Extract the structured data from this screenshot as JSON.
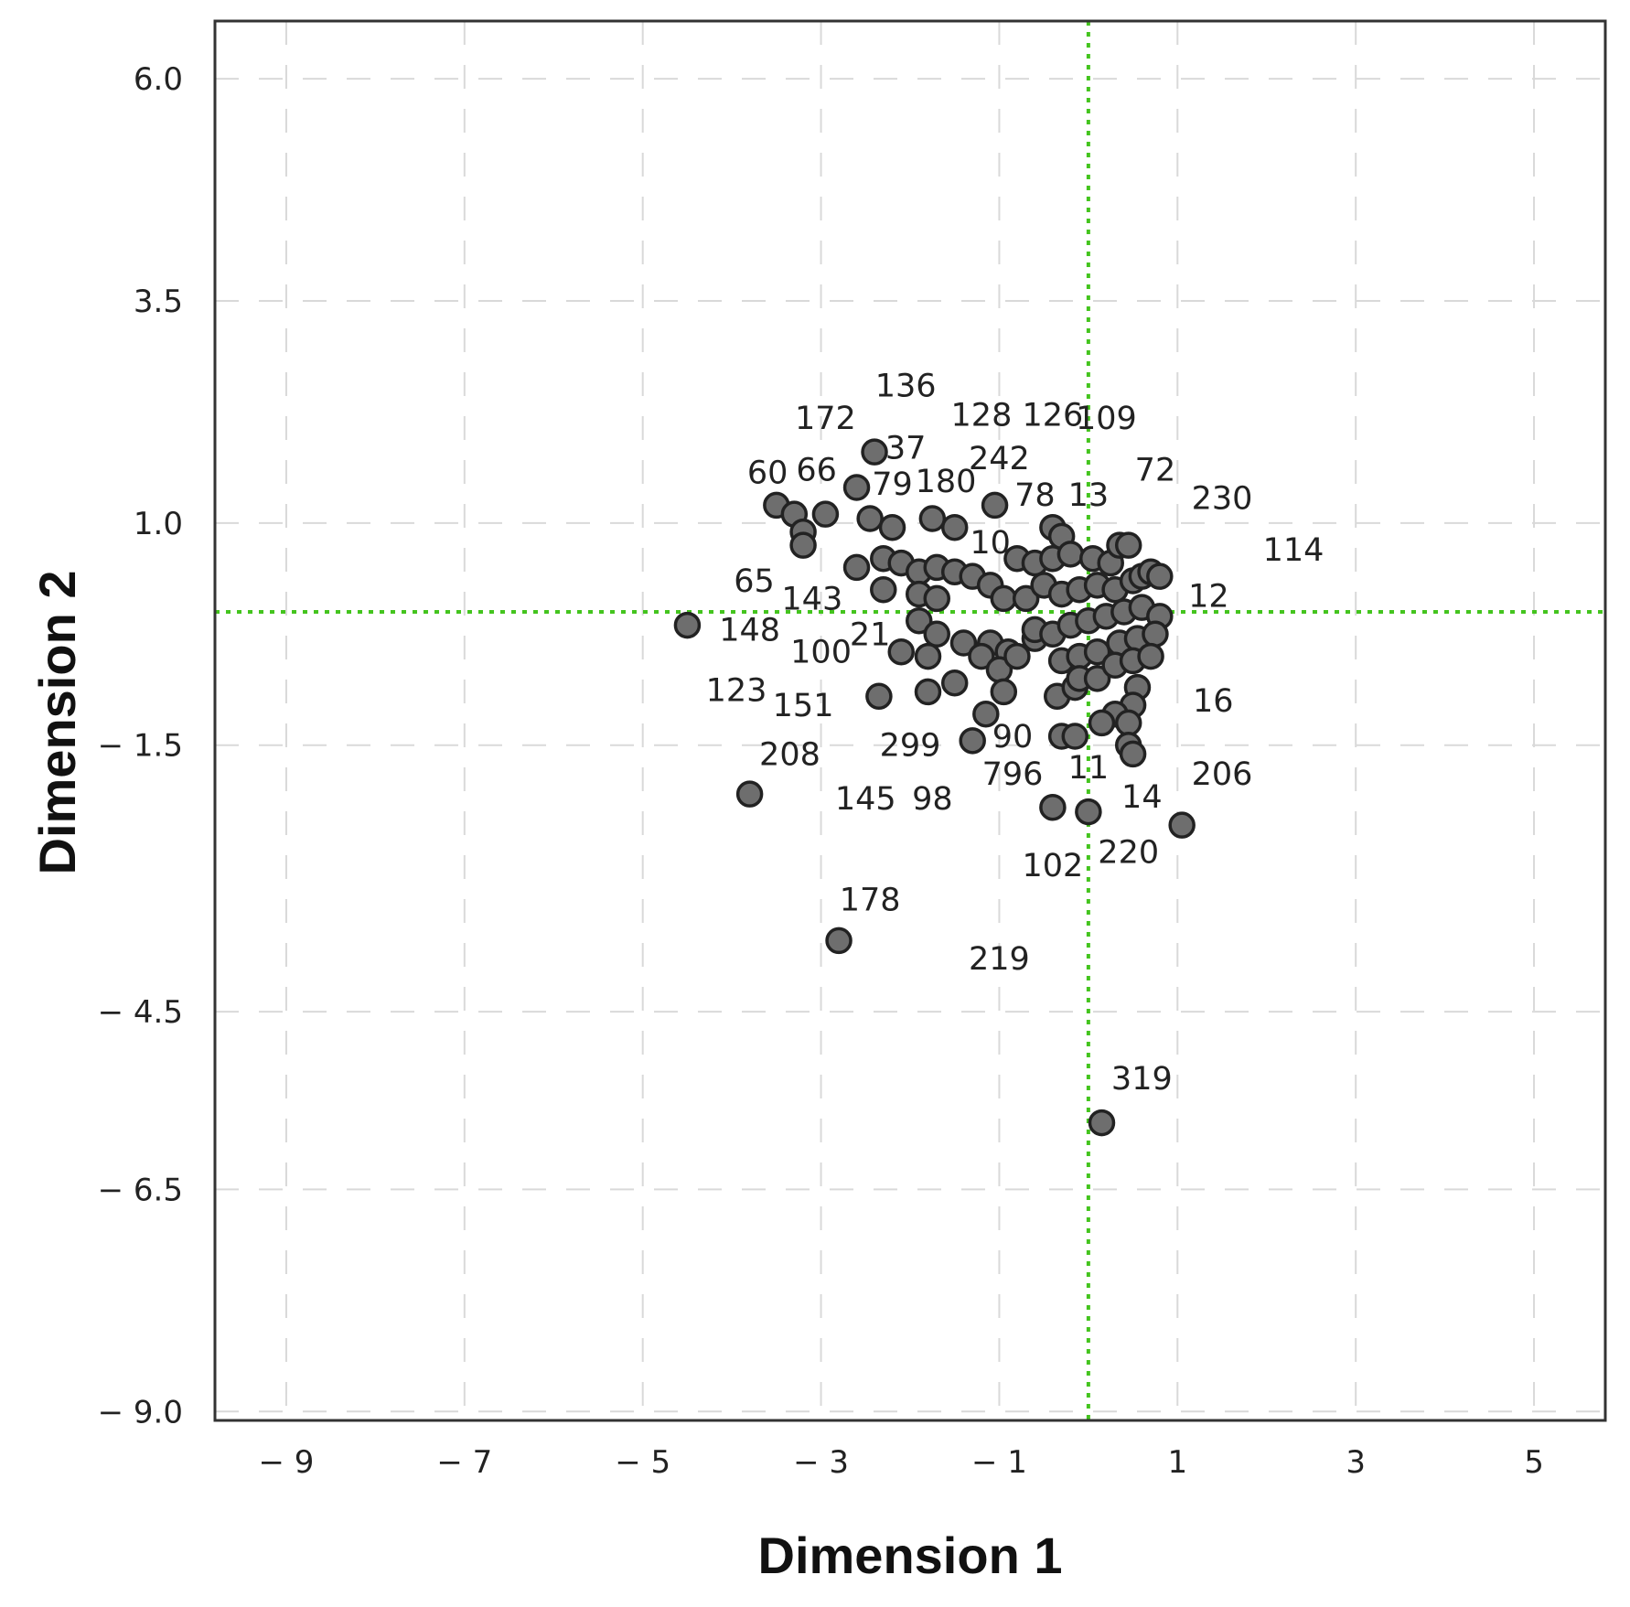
{
  "chart_data": {
    "type": "scatter",
    "xlabel": "Dimension 1",
    "ylabel": "Dimension 2",
    "xlim": [
      -9.8,
      5.8
    ],
    "ylim": [
      -9.1,
      6.65
    ],
    "x_ticks": [
      {
        "value": -9,
        "label": "− 9"
      },
      {
        "value": -7,
        "label": "− 7"
      },
      {
        "value": -5,
        "label": "− 5"
      },
      {
        "value": -3,
        "label": "− 3"
      },
      {
        "value": -1,
        "label": "− 1"
      },
      {
        "value": 1,
        "label": "1"
      },
      {
        "value": 3,
        "label": "3"
      },
      {
        "value": 5,
        "label": "5"
      }
    ],
    "y_ticks": [
      {
        "value": 6.0,
        "label": "6.0"
      },
      {
        "value": 3.5,
        "label": "3.5"
      },
      {
        "value": 1.0,
        "label": "1.0"
      },
      {
        "value": -1.5,
        "label": "− 1.5"
      },
      {
        "value": -4.5,
        "label": "− 4.5"
      },
      {
        "value": -6.5,
        "label": "− 6.5"
      },
      {
        "value": -9.0,
        "label": "− 9.0"
      }
    ],
    "grid": true,
    "reference_lines": {
      "x": 0,
      "y": 0
    },
    "point_color": "#6e6e6e",
    "reference_color": "#44c41e",
    "points": [
      [
        -4.5,
        -0.15
      ],
      [
        -3.8,
        -2.05
      ],
      [
        -2.8,
        -3.7
      ],
      [
        0.15,
        -5.75
      ],
      [
        1.05,
        -2.4
      ],
      [
        -0.4,
        -2.2
      ],
      [
        0.0,
        -2.25
      ],
      [
        -2.4,
        1.8
      ],
      [
        -2.6,
        1.4
      ],
      [
        -3.5,
        1.2
      ],
      [
        -3.3,
        1.1
      ],
      [
        -3.2,
        0.9
      ],
      [
        -3.2,
        0.75
      ],
      [
        -2.95,
        1.1
      ],
      [
        -2.45,
        1.05
      ],
      [
        -2.2,
        0.95
      ],
      [
        -1.75,
        1.05
      ],
      [
        -1.5,
        0.95
      ],
      [
        -1.05,
        1.2
      ],
      [
        -0.4,
        0.95
      ],
      [
        -0.3,
        0.85
      ],
      [
        -2.6,
        0.5
      ],
      [
        -2.3,
        0.6
      ],
      [
        -2.1,
        0.55
      ],
      [
        -1.9,
        0.45
      ],
      [
        -1.7,
        0.5
      ],
      [
        -1.5,
        0.45
      ],
      [
        -1.3,
        0.4
      ],
      [
        -1.1,
        0.3
      ],
      [
        -2.3,
        0.25
      ],
      [
        -1.9,
        0.2
      ],
      [
        -1.7,
        0.15
      ],
      [
        -0.95,
        0.15
      ],
      [
        -1.9,
        -0.1
      ],
      [
        -1.7,
        -0.25
      ],
      [
        -1.4,
        -0.35
      ],
      [
        -1.1,
        -0.35
      ],
      [
        -0.9,
        -0.45
      ],
      [
        -0.6,
        -0.3
      ],
      [
        -2.1,
        -0.45
      ],
      [
        -1.8,
        -0.5
      ],
      [
        -1.2,
        -0.5
      ],
      [
        -1.0,
        -0.65
      ],
      [
        -0.8,
        -0.5
      ],
      [
        -2.35,
        -0.95
      ],
      [
        -1.8,
        -0.9
      ],
      [
        -1.5,
        -0.8
      ],
      [
        -0.95,
        -0.9
      ],
      [
        -0.35,
        -0.95
      ],
      [
        -0.15,
        -0.85
      ],
      [
        -1.3,
        -1.45
      ],
      [
        -1.15,
        -1.15
      ],
      [
        -0.3,
        -1.4
      ],
      [
        -0.15,
        -1.4
      ],
      [
        -0.8,
        0.6
      ],
      [
        -0.6,
        0.55
      ],
      [
        -0.4,
        0.6
      ],
      [
        -0.2,
        0.65
      ],
      [
        0.05,
        0.6
      ],
      [
        0.25,
        0.55
      ],
      [
        0.35,
        0.75
      ],
      [
        0.45,
        0.75
      ],
      [
        -0.7,
        0.15
      ],
      [
        -0.5,
        0.3
      ],
      [
        -0.3,
        0.2
      ],
      [
        -0.1,
        0.25
      ],
      [
        0.1,
        0.3
      ],
      [
        0.3,
        0.25
      ],
      [
        0.5,
        0.35
      ],
      [
        0.6,
        0.4
      ],
      [
        0.7,
        0.45
      ],
      [
        0.8,
        0.4
      ],
      [
        -0.6,
        -0.2
      ],
      [
        -0.4,
        -0.25
      ],
      [
        -0.2,
        -0.15
      ],
      [
        0.0,
        -0.1
      ],
      [
        0.2,
        -0.05
      ],
      [
        0.4,
        0.0
      ],
      [
        0.6,
        0.05
      ],
      [
        0.8,
        -0.05
      ],
      [
        -0.3,
        -0.55
      ],
      [
        -0.1,
        -0.5
      ],
      [
        0.1,
        -0.45
      ],
      [
        0.35,
        -0.35
      ],
      [
        0.55,
        -0.3
      ],
      [
        0.75,
        -0.25
      ],
      [
        -0.1,
        -0.75
      ],
      [
        0.1,
        -0.75
      ],
      [
        0.3,
        -0.6
      ],
      [
        0.5,
        -0.55
      ],
      [
        0.7,
        -0.5
      ],
      [
        0.55,
        -0.85
      ],
      [
        0.5,
        -1.05
      ],
      [
        0.3,
        -1.15
      ],
      [
        0.15,
        -1.25
      ],
      [
        0.45,
        -1.25
      ],
      [
        0.45,
        -1.5
      ],
      [
        0.5,
        -1.6
      ]
    ],
    "point_labels": [
      {
        "text": "136",
        "x": -2.05,
        "y": 2.55
      },
      {
        "text": "172",
        "x": -2.95,
        "y": 2.18
      },
      {
        "text": "37",
        "x": -2.05,
        "y": 1.85
      },
      {
        "text": "128",
        "x": -1.2,
        "y": 2.22
      },
      {
        "text": "126",
        "x": -0.4,
        "y": 2.22
      },
      {
        "text": "109",
        "x": 0.2,
        "y": 2.18
      },
      {
        "text": "242",
        "x": -1.0,
        "y": 1.73
      },
      {
        "text": "60",
        "x": -3.6,
        "y": 1.57
      },
      {
        "text": "66",
        "x": -3.05,
        "y": 1.6
      },
      {
        "text": "79",
        "x": -2.2,
        "y": 1.44
      },
      {
        "text": "180",
        "x": -1.6,
        "y": 1.47
      },
      {
        "text": "72",
        "x": 0.75,
        "y": 1.6
      },
      {
        "text": "78",
        "x": -0.6,
        "y": 1.32
      },
      {
        "text": "13",
        "x": 0.0,
        "y": 1.32
      },
      {
        "text": "230",
        "x": 1.5,
        "y": 1.28
      },
      {
        "text": "114",
        "x": 2.3,
        "y": 0.7
      },
      {
        "text": "10",
        "x": -1.1,
        "y": 0.78
      },
      {
        "text": "65",
        "x": -3.75,
        "y": 0.35
      },
      {
        "text": "143",
        "x": -3.1,
        "y": 0.15
      },
      {
        "text": "12",
        "x": 1.35,
        "y": 0.18
      },
      {
        "text": "148",
        "x": -3.8,
        "y": -0.2
      },
      {
        "text": "100",
        "x": -3.0,
        "y": -0.45
      },
      {
        "text": "21",
        "x": -2.45,
        "y": -0.25
      },
      {
        "text": "123",
        "x": -3.95,
        "y": -0.88
      },
      {
        "text": "151",
        "x": -3.2,
        "y": -1.05
      },
      {
        "text": "16",
        "x": 1.4,
        "y": -1.0
      },
      {
        "text": "208",
        "x": -3.35,
        "y": -1.6
      },
      {
        "text": "299",
        "x": -2.0,
        "y": -1.5
      },
      {
        "text": "90",
        "x": -0.85,
        "y": -1.4
      },
      {
        "text": "796",
        "x": -0.85,
        "y": -1.82
      },
      {
        "text": "11",
        "x": 0.0,
        "y": -1.75
      },
      {
        "text": "206",
        "x": 1.5,
        "y": -1.82
      },
      {
        "text": "145",
        "x": -2.5,
        "y": -2.1
      },
      {
        "text": "98",
        "x": -1.75,
        "y": -2.1
      },
      {
        "text": "14",
        "x": 0.6,
        "y": -2.08
      },
      {
        "text": "220",
        "x": 0.45,
        "y": -2.7
      },
      {
        "text": "102",
        "x": -0.4,
        "y": -2.85
      },
      {
        "text": "178",
        "x": -2.45,
        "y": -3.24
      },
      {
        "text": "219",
        "x": -1.0,
        "y": -3.9
      },
      {
        "text": "319",
        "x": 0.6,
        "y": -5.25
      }
    ]
  }
}
